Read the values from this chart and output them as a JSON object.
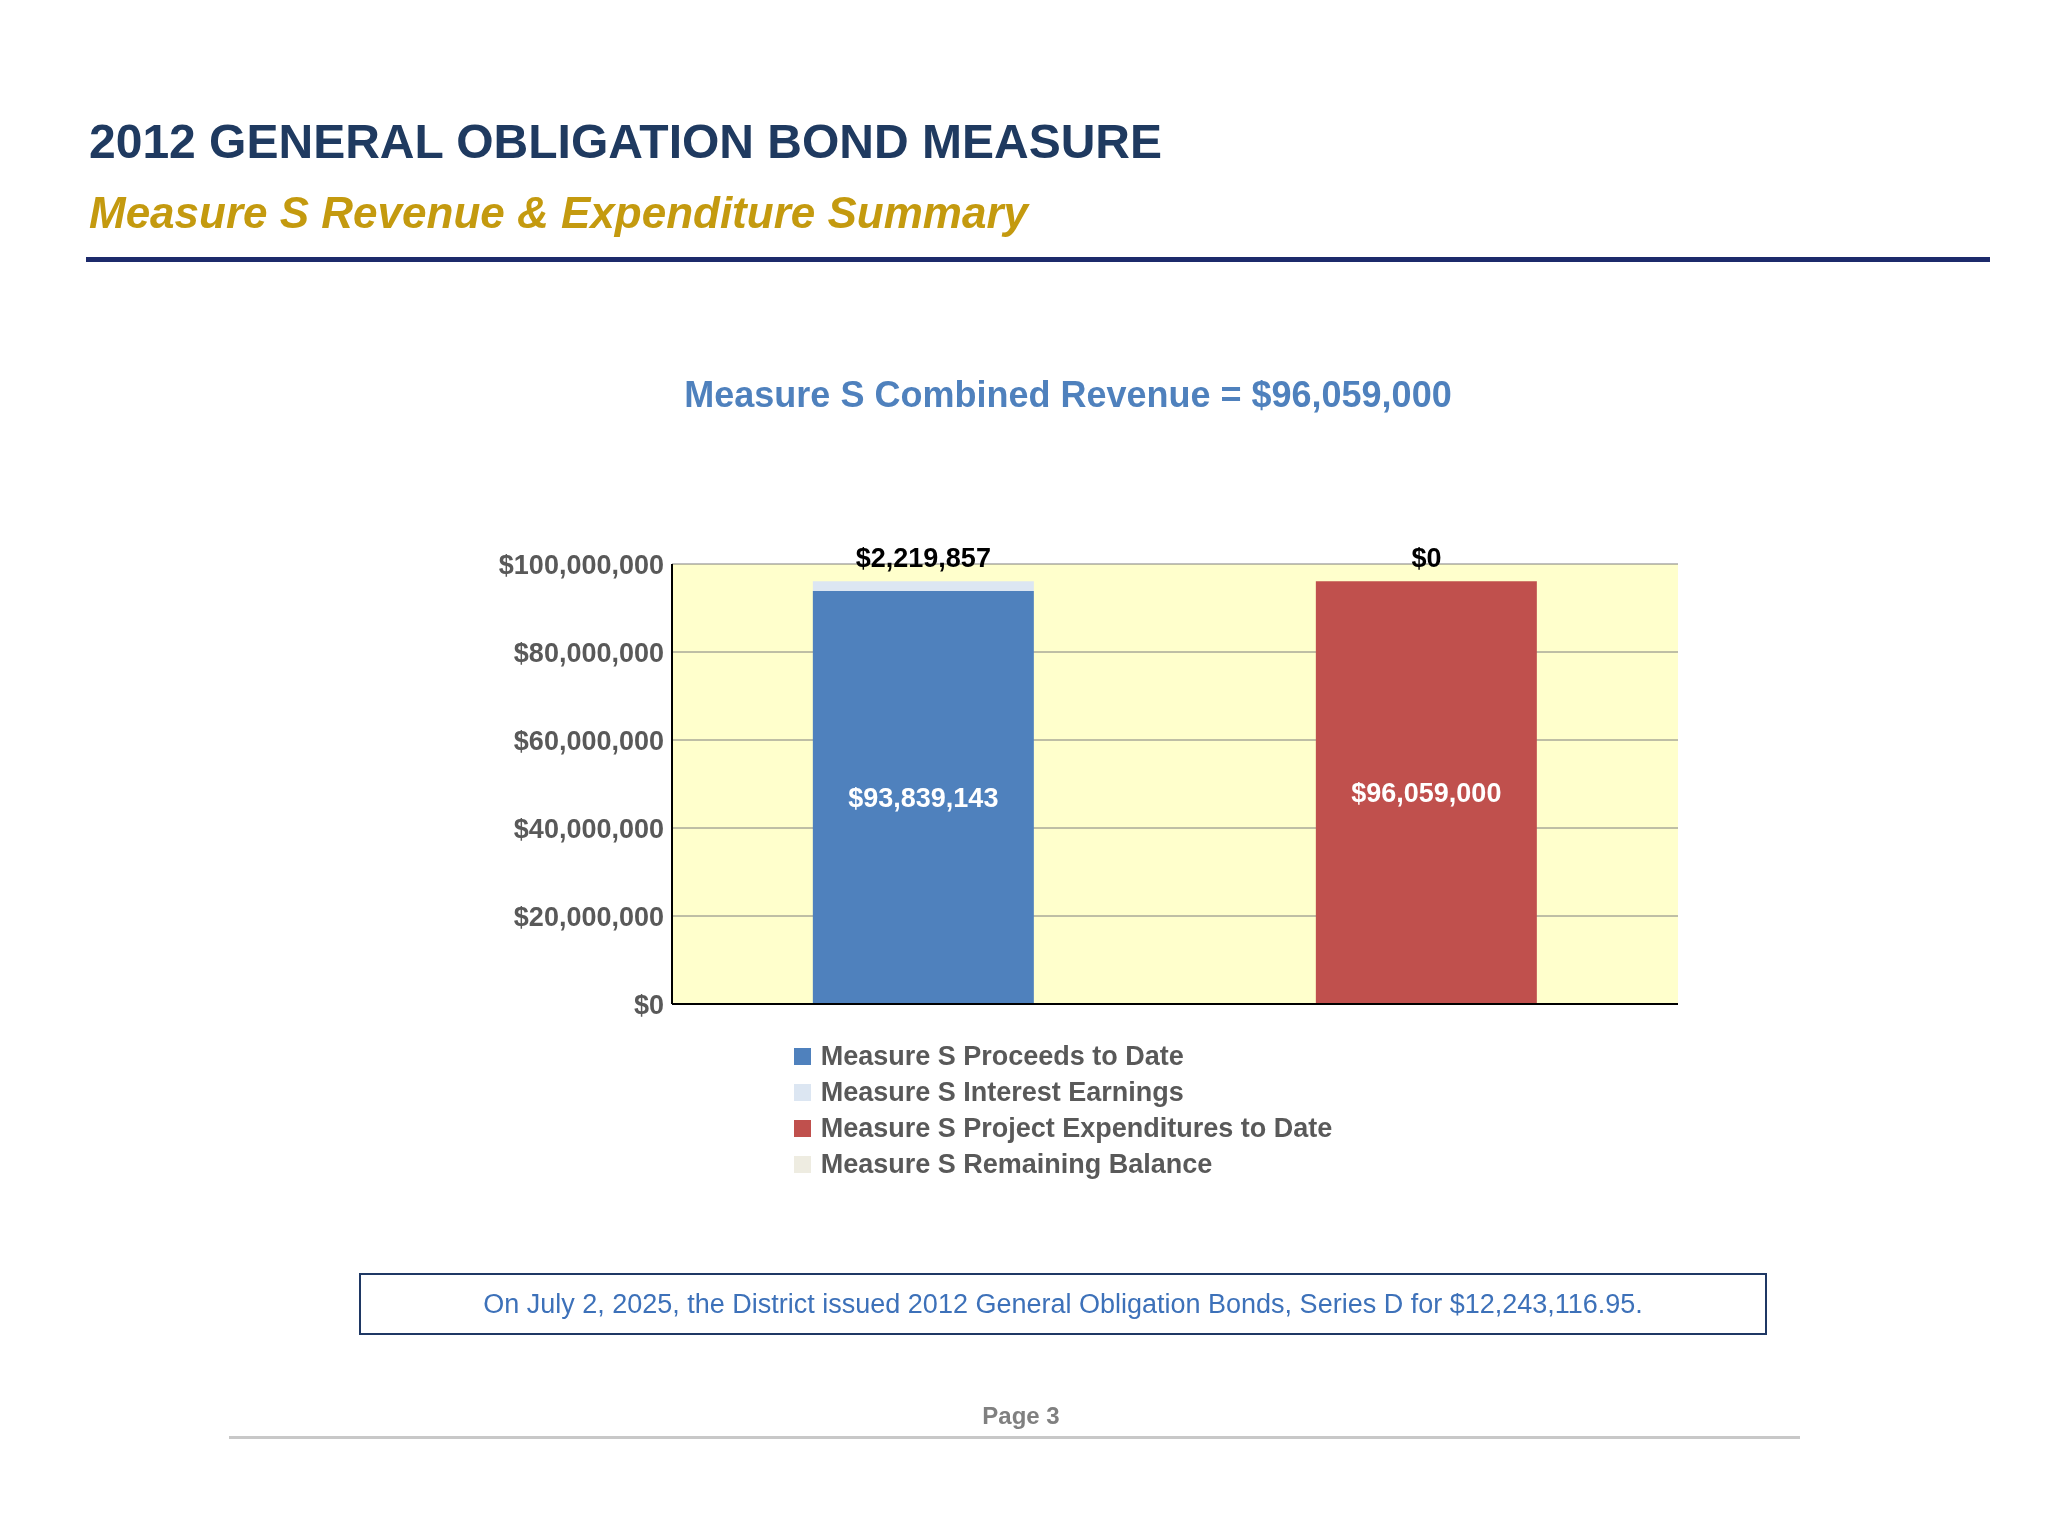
{
  "chart_data": {
    "type": "bar",
    "title": "2012 GENERAL OBLIGATION BOND MEASURE",
    "subtitle": "Measure S Revenue & Expenditure Summary",
    "annotations": [
      "Measure S Combined Revenue = $96,059,000",
      "On July 2, 2025, the District issued 2012 General Obligation Bonds, Series D for $12,243,116.95.",
      "Page 3"
    ],
    "categories": [
      null,
      null
    ],
    "series": [
      {
        "name": "Measure S Proceeds to Date",
        "color": "#4f81bd",
        "values": [
          93839143,
          null
        ],
        "value_labels": [
          "$93,839,143",
          null
        ]
      },
      {
        "name": "Measure S Interest Earnings",
        "color": "#dce6f2",
        "values": [
          2219857,
          null
        ],
        "value_labels": [
          "$2,219,857",
          null
        ]
      },
      {
        "name": "Measure S Project Expenditures to Date",
        "color": "#c0504d",
        "values": [
          null,
          96059000
        ],
        "value_labels": [
          null,
          "$96,059,000"
        ]
      },
      {
        "name": "Measure S Remaining Balance",
        "color": "#eeece1",
        "values": [
          null,
          0
        ],
        "value_labels": [
          null,
          "$0"
        ]
      }
    ],
    "stacked": true,
    "ylim": [
      0,
      100000000
    ],
    "yticks": [
      {
        "value": 0,
        "label": "$0"
      },
      {
        "value": 20000000,
        "label": "$20,000,000"
      },
      {
        "value": 40000000,
        "label": "$40,000,000"
      },
      {
        "value": 60000000,
        "label": "$60,000,000"
      },
      {
        "value": 80000000,
        "label": "$80,000,000"
      },
      {
        "value": 100000000,
        "label": "$100,000,000"
      }
    ],
    "tick_labels": "y",
    "grid": "y",
    "legend": "bottom"
  }
}
